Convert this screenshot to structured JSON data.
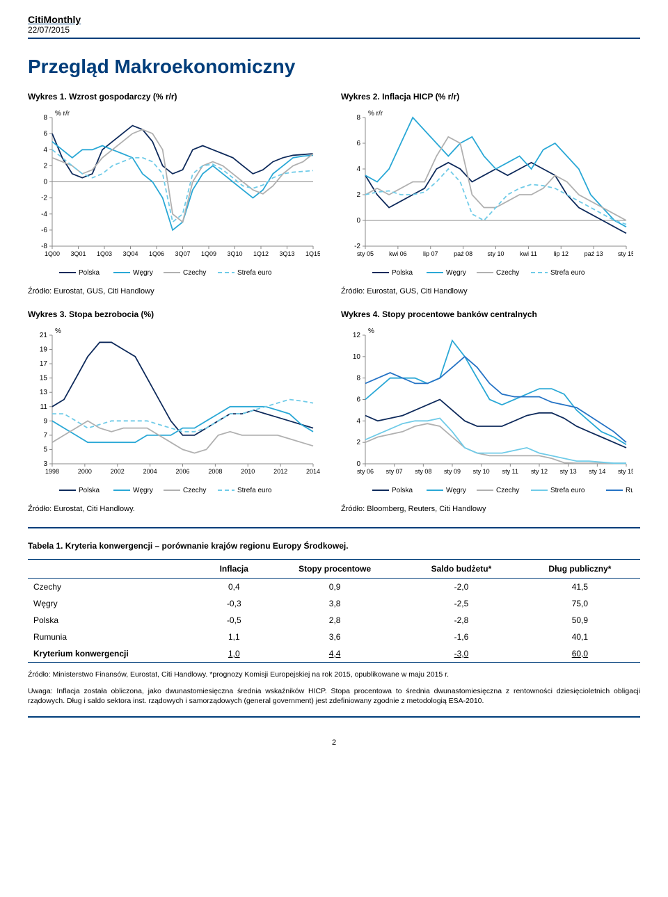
{
  "header": {
    "title": "CitiMonthly",
    "date": "22/07/2015"
  },
  "page_title": "Przegląd Makroekonomiczny",
  "pagenum": "2",
  "colors": {
    "poland": "#0e2a5b",
    "hungary": "#2aa8d6",
    "czech": "#b0b0b0",
    "euro": "#6fcbe8",
    "romania": "#2573c5",
    "rule": "#003d7a",
    "grid": "#e6e6e6",
    "axis": "#888"
  },
  "charts": {
    "c1": {
      "caption": "Wykres 1. Wzrost gospodarczy (% r/r)",
      "type": "line",
      "ylabel": "% r/r",
      "ylim": [
        -8,
        8
      ],
      "ytick_step": 2,
      "label_fontsize": 10,
      "xticks": [
        "1Q00",
        "3Q01",
        "1Q03",
        "3Q04",
        "1Q06",
        "3Q07",
        "1Q09",
        "3Q10",
        "1Q12",
        "3Q13",
        "1Q15"
      ],
      "series": [
        {
          "name": "Polska",
          "color": "#0e2a5b",
          "dash": "0",
          "data": [
            6,
            3,
            1,
            0.5,
            1,
            4,
            5,
            6,
            7,
            6.5,
            5,
            2,
            1,
            1.5,
            4,
            4.5,
            4,
            3.5,
            3,
            2,
            1,
            1.5,
            2.5,
            3,
            3.3,
            3.4,
            3.5
          ]
        },
        {
          "name": "Węgry",
          "color": "#2aa8d6",
          "dash": "0",
          "data": [
            5,
            4,
            3,
            4,
            4,
            4.5,
            4,
            3.5,
            3,
            1,
            0,
            -2,
            -6,
            -5,
            -1,
            1,
            2,
            1,
            0,
            -1,
            -2,
            -1,
            1,
            2,
            3,
            3.2,
            3.3
          ]
        },
        {
          "name": "Czechy",
          "color": "#b0b0b0",
          "dash": "0",
          "data": [
            3,
            2.5,
            2,
            1,
            1.5,
            3,
            4,
            5,
            6,
            6.5,
            6,
            4,
            -4,
            -5,
            0,
            2,
            2.5,
            2,
            1,
            0,
            -1,
            -1.5,
            -0.5,
            1,
            2,
            2.5,
            3.5
          ]
        },
        {
          "name": "Strefa euro",
          "color": "#6fcbe8",
          "dash": "6,4",
          "data": [
            4,
            3,
            2,
            1,
            0.5,
            1,
            2,
            2.5,
            3,
            3,
            2.5,
            1,
            -5,
            -4,
            1,
            2,
            2.2,
            1.5,
            0.5,
            -0.5,
            -0.8,
            -0.4,
            0.5,
            1,
            1.2,
            1.3,
            1.4
          ]
        }
      ],
      "source": "Źródło: Eurostat, GUS, Citi Handlowy"
    },
    "c2": {
      "caption": "Wykres 2. Inflacja HICP (% r/r)",
      "type": "line",
      "ylabel": "% r/r",
      "ylim": [
        -2,
        8
      ],
      "ytick_step": 2,
      "label_fontsize": 10,
      "xticks": [
        "sty 05",
        "kwi 06",
        "lip 07",
        "paź 08",
        "sty 10",
        "kwi 11",
        "lip 12",
        "paź 13",
        "sty 15"
      ],
      "series": [
        {
          "name": "Polska",
          "color": "#0e2a5b",
          "dash": "0",
          "data": [
            3.5,
            2,
            1,
            1.5,
            2,
            2.5,
            4,
            4.5,
            4,
            3,
            3.5,
            4,
            3.5,
            4,
            4.5,
            4,
            3.5,
            2,
            1,
            0.5,
            0,
            -0.5,
            -1
          ]
        },
        {
          "name": "Węgry",
          "color": "#2aa8d6",
          "dash": "0",
          "data": [
            3.5,
            3,
            4,
            6,
            8,
            7,
            6,
            5,
            6,
            6.5,
            5,
            4,
            4.5,
            5,
            4,
            5.5,
            6,
            5,
            4,
            2,
            1,
            0,
            -0.5
          ]
        },
        {
          "name": "Czechy",
          "color": "#b0b0b0",
          "dash": "0",
          "data": [
            2,
            2.5,
            2,
            2.5,
            3,
            3,
            5,
            6.5,
            6,
            2,
            1,
            1,
            1.5,
            2,
            2,
            2.5,
            3.5,
            3,
            2,
            1.5,
            1,
            0.5,
            0
          ]
        },
        {
          "name": "Strefa euro",
          "color": "#6fcbe8",
          "dash": "6,4",
          "data": [
            2,
            2.2,
            2.3,
            2,
            2,
            2.2,
            3,
            4,
            3,
            0.5,
            0,
            1,
            2,
            2.5,
            2.8,
            2.7,
            2.5,
            2,
            1.5,
            1,
            0.5,
            0,
            -0.3
          ]
        }
      ],
      "source": "Źródło: Eurostat, GUS, Citi Handlowy"
    },
    "c3": {
      "caption": "Wykres 3. Stopa bezrobocia (%)",
      "type": "line",
      "ylabel": "%",
      "ylim": [
        3,
        21
      ],
      "ytick_step": 2,
      "label_fontsize": 10,
      "xticks": [
        "1998",
        "2000",
        "2002",
        "2004",
        "2006",
        "2008",
        "2010",
        "2012",
        "2014"
      ],
      "series": [
        {
          "name": "Polska",
          "color": "#0e2a5b",
          "dash": "0",
          "data": [
            11,
            12,
            15,
            18,
            20,
            20,
            19,
            18,
            15,
            12,
            9,
            7,
            7,
            8,
            9,
            10,
            10,
            10.5,
            10,
            9.5,
            9,
            8.5,
            8
          ]
        },
        {
          "name": "Węgry",
          "color": "#2aa8d6",
          "dash": "0",
          "data": [
            9,
            8,
            7,
            6,
            6,
            6,
            6,
            6,
            7,
            7,
            7,
            8,
            8,
            9,
            10,
            11,
            11,
            11,
            11,
            10.5,
            10,
            8.5,
            7.5
          ]
        },
        {
          "name": "Czechy",
          "color": "#b0b0b0",
          "dash": "0",
          "data": [
            6,
            7,
            8,
            9,
            8,
            7.5,
            8,
            8,
            8,
            7,
            6,
            5,
            4.5,
            5,
            7,
            7.5,
            7,
            7,
            7,
            7,
            6.5,
            6,
            5.5
          ]
        },
        {
          "name": "Strefa euro",
          "color": "#6fcbe8",
          "dash": "6,4",
          "data": [
            10,
            10,
            9,
            8,
            8.5,
            9,
            9,
            9,
            9,
            8.5,
            8,
            7.5,
            7.5,
            8,
            9,
            10,
            10,
            10.5,
            11,
            11.5,
            12,
            11.8,
            11.5
          ]
        }
      ],
      "source": "Źródło: Eurostat, Citi Handlowy."
    },
    "c4": {
      "caption": "Wykres 4. Stopy procentowe banków centralnych",
      "type": "line",
      "ylabel": "%",
      "ylim": [
        0,
        12
      ],
      "ytick_step": 2,
      "label_fontsize": 10,
      "xticks": [
        "sty 06",
        "sty 07",
        "sty 08",
        "sty 09",
        "sty 10",
        "sty 11",
        "sty 12",
        "sty 13",
        "sty 14",
        "sty 15"
      ],
      "series": [
        {
          "name": "Polska",
          "color": "#0e2a5b",
          "dash": "0",
          "data": [
            4.5,
            4,
            4.25,
            4.5,
            5,
            5.5,
            6,
            5,
            4,
            3.5,
            3.5,
            3.5,
            4,
            4.5,
            4.75,
            4.75,
            4.25,
            3.5,
            3,
            2.5,
            2,
            1.5
          ]
        },
        {
          "name": "Węgry",
          "color": "#2aa8d6",
          "dash": "0",
          "data": [
            6,
            7,
            8,
            8,
            8,
            7.5,
            8,
            11.5,
            10,
            8,
            6,
            5.5,
            6,
            6.5,
            7,
            7,
            6.5,
            5,
            4,
            3,
            2.5,
            1.8
          ]
        },
        {
          "name": "Czechy",
          "color": "#b0b0b0",
          "dash": "0",
          "data": [
            2,
            2.5,
            2.75,
            3,
            3.5,
            3.75,
            3.5,
            2.5,
            1.5,
            1,
            0.75,
            0.75,
            0.75,
            0.75,
            0.75,
            0.5,
            0.1,
            0.05,
            0.05,
            0.05,
            0.05,
            0.05
          ]
        },
        {
          "name": "Strefa euro",
          "color": "#6fcbe8",
          "dash": "0",
          "data": [
            2.25,
            2.75,
            3.25,
            3.75,
            4,
            4,
            4.25,
            3,
            1.5,
            1,
            1,
            1,
            1.25,
            1.5,
            1,
            0.75,
            0.5,
            0.25,
            0.25,
            0.15,
            0.05,
            0.05
          ]
        },
        {
          "name": "Rumunia",
          "color": "#2573c5",
          "dash": "0",
          "data": [
            7.5,
            8,
            8.5,
            8,
            7.5,
            7.5,
            8,
            9,
            10,
            9,
            7.5,
            6.5,
            6.25,
            6.25,
            6.25,
            5.75,
            5.5,
            5.25,
            4.5,
            3.75,
            3,
            2
          ]
        }
      ],
      "source": "Źródło: Bloomberg, Reuters, Citi Handlowy"
    }
  },
  "table": {
    "title": "Tabela 1. Kryteria konwergencji – porównanie krajów regionu Europy Środkowej.",
    "columns": [
      "",
      "Inflacja",
      "Stopy procentowe",
      "Saldo budżetu*",
      "Dług publiczny*"
    ],
    "rows": [
      [
        "Czechy",
        "0,4",
        "0,9",
        "-2,0",
        "41,5"
      ],
      [
        "Węgry",
        "-0,3",
        "3,8",
        "-2,5",
        "75,0"
      ],
      [
        "Polska",
        "-0,5",
        "2,8",
        "-2,8",
        "50,9"
      ],
      [
        "Rumunia",
        "1,1",
        "3,6",
        "-1,6",
        "40,1"
      ],
      [
        "Kryterium konwergencji",
        "1,0",
        "4,4",
        "-3,0",
        "60,0"
      ]
    ],
    "source": "Źródło: Ministerstwo Finansów, Eurostat, Citi Handlowy. *prognozy Komisji Europejskiej na rok 2015, opublikowane w maju 2015 r.",
    "note": "Uwaga: Inflacja została obliczona, jako dwunastomiesięczna średnia wskaźników HICP. Stopa procentowa to średnia dwunastomiesięczna z rentowności dziesięcioletnich obligacji rządowych. Dług i saldo sektora inst. rządowych i samorządowych (general government) jest zdefiniowany zgodnie z metodologią ESA-2010."
  }
}
